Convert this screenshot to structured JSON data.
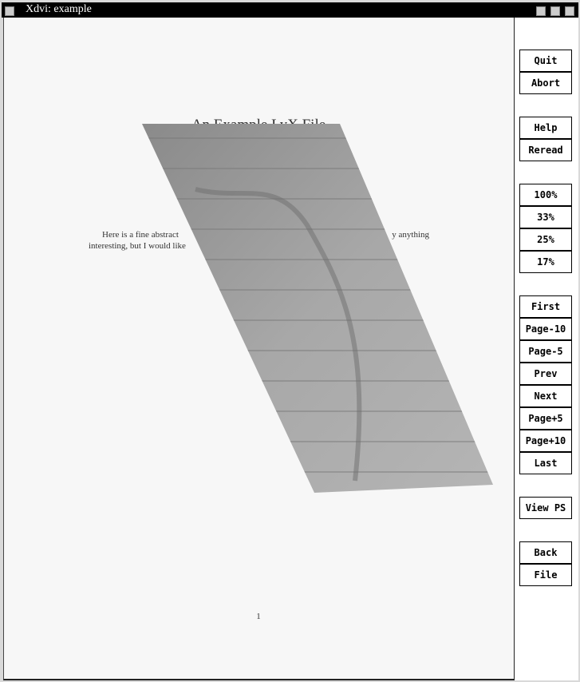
{
  "window": {
    "title": "Xdvi: example"
  },
  "document": {
    "title": "An Example LyX File",
    "abstract": [
      "Here is a fine abstract",
      "y anything",
      "interesting, but I would like"
    ],
    "page_number": "1"
  },
  "buttons": [
    [
      "Quit",
      "Abort"
    ],
    [
      "Help",
      "Reread"
    ],
    [
      "100%",
      "33%",
      "25%",
      "17%"
    ],
    [
      "First",
      "Page-10",
      "Page-5",
      "Prev",
      "Next",
      "Page+5",
      "Page+10",
      "Last"
    ],
    [
      "View PS"
    ],
    [
      "Back",
      "File"
    ]
  ]
}
